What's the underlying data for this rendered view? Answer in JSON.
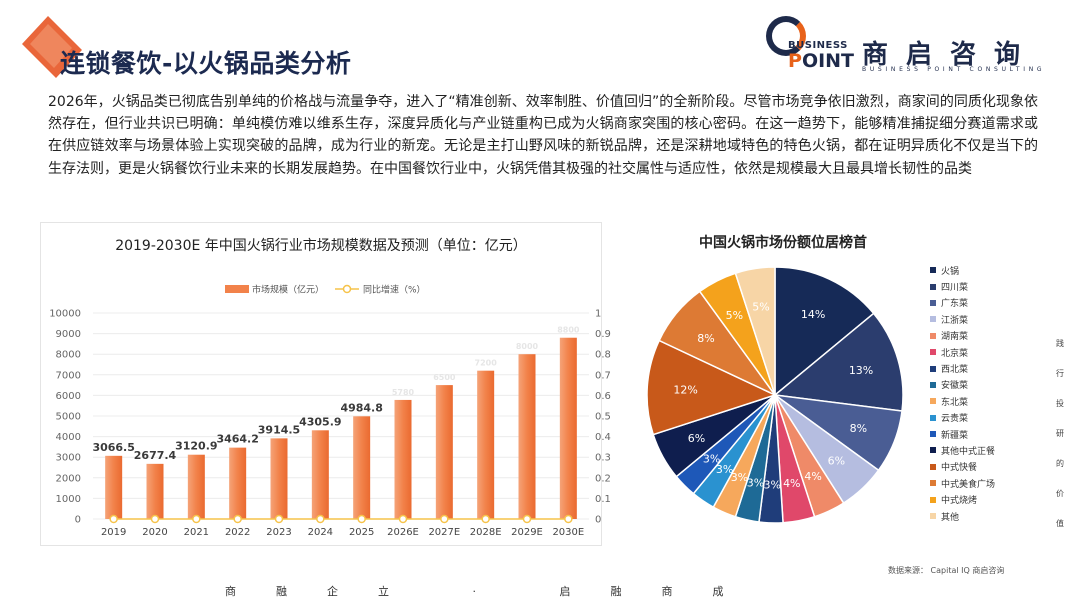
{
  "title": "连锁餐饮-以火锅品类分析",
  "logo": {
    "business": "BUSINESS",
    "point_first": "P",
    "point_rest": "OINT",
    "cn": "商启咨询",
    "en": "BUSINESS POINT CONSULTING"
  },
  "intro": "2026年，火锅品类已彻底告别单纯的价格战与流量争夺，进入了“精准创新、效率制胜、价值回归”的全新阶段。尽管市场竞争依旧激烈，商家间的同质化现象依然存在，但行业共识已明确：单纯模仿难以维系生存，深度异质化与产业链重构已成为火锅商家突围的核心密码。在这一趋势下，能够精准捕捉细分赛道需求或在供应链效率与场景体验上实现突破的品牌，成为行业的新宠。无论是主打山野风味的新锐品牌，还是深耕地域特色的特色火锅，都在证明异质化不仅是当下的生存法则，更是火锅餐饮行业未来的长期发展趋势。在中国餐饮行业中，火锅凭借其极强的社交属性与适应性，依然是规模最大且最具增长韧性的品类",
  "side_text": [
    "践",
    "行",
    "投",
    "研",
    "的",
    "价",
    "值"
  ],
  "source": "数据来源：  Capital IQ 商启咨询",
  "footer": "商融企立 · 启融商成",
  "chart_data": [
    {
      "type": "bar",
      "title": "2019-2030E 年中国火锅行业市场规模数据及预测（单位：亿元）",
      "categories": [
        "2019",
        "2020",
        "2021",
        "2022",
        "2023",
        "2024",
        "2025",
        "2026E",
        "2027E",
        "2028E",
        "2029E",
        "2030E"
      ],
      "series": [
        {
          "name": "市场规模（亿元）",
          "axis": "left",
          "color": "#f2824a",
          "values": [
            3066.5,
            2677.4,
            3120.9,
            3464.2,
            3914.5,
            4305.9,
            4984.8,
            5780,
            6500,
            7200,
            8000,
            8800
          ]
        },
        {
          "name": "同比增速（%）",
          "axis": "right",
          "color": "#f6c34a",
          "type": "line",
          "values": [
            0,
            0,
            0,
            0,
            0,
            0,
            0,
            0,
            0,
            0,
            0,
            0
          ]
        }
      ],
      "data_labels": [
        "3066.5",
        "2677.4",
        "3120.9",
        "3464.2",
        "3914.5",
        "4305.9",
        "4984.8",
        "5780",
        "6500",
        "7200",
        "8000",
        "8800"
      ],
      "ylim": [
        0,
        10000
      ],
      "yticks": [
        "0",
        "1000",
        "2000",
        "3000",
        "4000",
        "5000",
        "6000",
        "7000",
        "8000",
        "9000",
        "10000"
      ],
      "y2lim": [
        0,
        1
      ],
      "y2ticks": [
        "0",
        "0.1",
        "0.2",
        "0.3",
        "0.4",
        "0.5",
        "0.6",
        "0.7",
        "0.8",
        "0.9",
        "1"
      ],
      "legend_position": "top-center",
      "grid": true
    },
    {
      "type": "pie",
      "title": "中国火锅市场份额位居榜首",
      "legend_position": "right",
      "slices": [
        {
          "label": "火锅",
          "value": 14,
          "text": "14%",
          "color": "#162a57"
        },
        {
          "label": "四川菜",
          "value": 13,
          "text": "13%",
          "color": "#2b3d6e"
        },
        {
          "label": "广东菜",
          "value": 8,
          "text": "8%",
          "color": "#4a5d94"
        },
        {
          "label": "江浙菜",
          "value": 6,
          "text": "6%",
          "color": "#b5bde0"
        },
        {
          "label": "湖南菜",
          "value": 4,
          "text": "4%",
          "color": "#ef8a68"
        },
        {
          "label": "北京菜",
          "value": 4,
          "text": "4%",
          "color": "#e0486a"
        },
        {
          "label": "西北菜",
          "value": 3,
          "text": "3%",
          "color": "#1f3d7a"
        },
        {
          "label": "安徽菜",
          "value": 3,
          "text": "3%",
          "color": "#1e6a96"
        },
        {
          "label": "东北菜",
          "value": 3,
          "text": "3%",
          "color": "#f6a85c"
        },
        {
          "label": "云贵菜",
          "value": 3,
          "text": "3%",
          "color": "#2a92d0"
        },
        {
          "label": "新疆菜",
          "value": 3,
          "text": "3%",
          "color": "#1e58b8"
        },
        {
          "label": "其他中式正餐",
          "value": 6,
          "text": "6%",
          "color": "#0f1e4e"
        },
        {
          "label": "中式快餐",
          "value": 12,
          "text": "12%",
          "color": "#c8591a"
        },
        {
          "label": "中式美食广场",
          "value": 8,
          "text": "8%",
          "color": "#dd7a34"
        },
        {
          "label": "中式烧烤",
          "value": 5,
          "text": "5%",
          "color": "#f4a21c"
        },
        {
          "label": "其他",
          "value": 5,
          "text": "5%",
          "color": "#f7d5a6"
        }
      ]
    }
  ]
}
